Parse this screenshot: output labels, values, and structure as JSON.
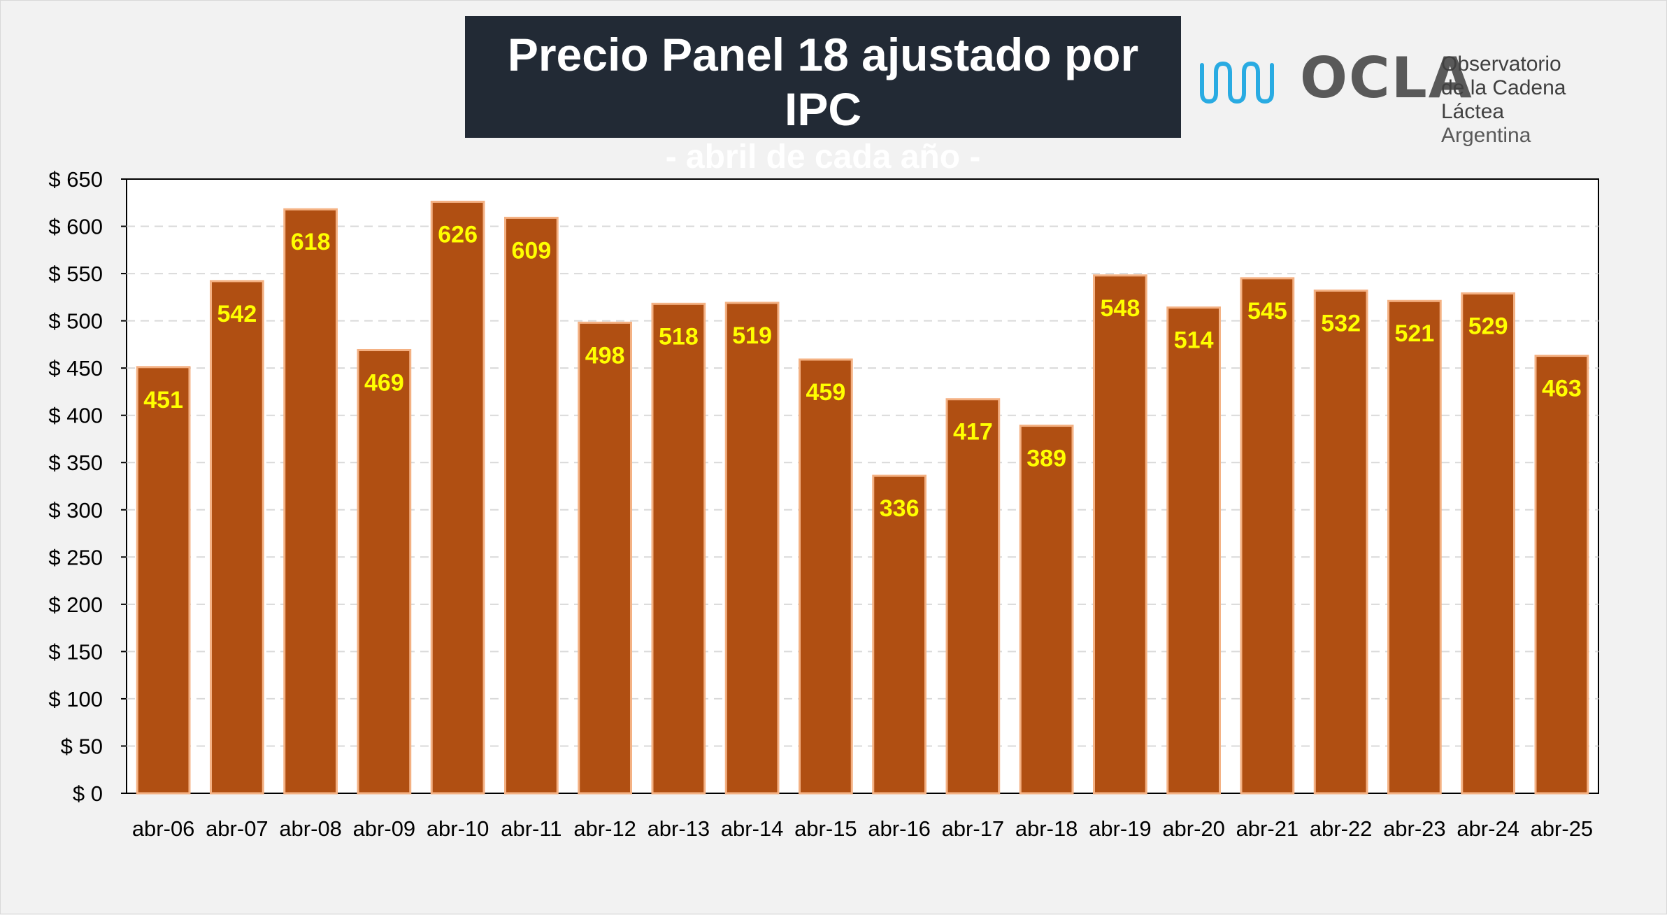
{
  "title": "Precio Panel 18 ajustado por IPC",
  "subtitle": "- abril de cada año -",
  "logo": {
    "name": "OCLA",
    "line1": "Observatorio",
    "line2": "de la Cadena Láctea",
    "line3": "Argentina",
    "icon": "wave-logo-icon"
  },
  "colors": {
    "bar": "#b04f12",
    "bar_border": "#f4b183",
    "label": "#ffff00",
    "title_bg": "#222a35"
  },
  "chart_data": {
    "type": "bar",
    "title": "Precio Panel 18 ajustado por IPC",
    "subtitle": "- abril de cada año -",
    "categories": [
      "abr-06",
      "abr-07",
      "abr-08",
      "abr-09",
      "abr-10",
      "abr-11",
      "abr-12",
      "abr-13",
      "abr-14",
      "abr-15",
      "abr-16",
      "abr-17",
      "abr-18",
      "abr-19",
      "abr-20",
      "abr-21",
      "abr-22",
      "abr-23",
      "abr-24",
      "abr-25"
    ],
    "values": [
      451,
      542,
      618,
      469,
      626,
      609,
      498,
      518,
      519,
      459,
      336,
      417,
      389,
      548,
      514,
      545,
      532,
      521,
      529,
      463
    ],
    "ylim": [
      0,
      650
    ],
    "yticks": [
      0,
      50,
      100,
      150,
      200,
      250,
      300,
      350,
      400,
      450,
      500,
      550,
      600,
      650
    ],
    "ytick_prefix": "$ ",
    "grid": true,
    "legend": "none"
  }
}
